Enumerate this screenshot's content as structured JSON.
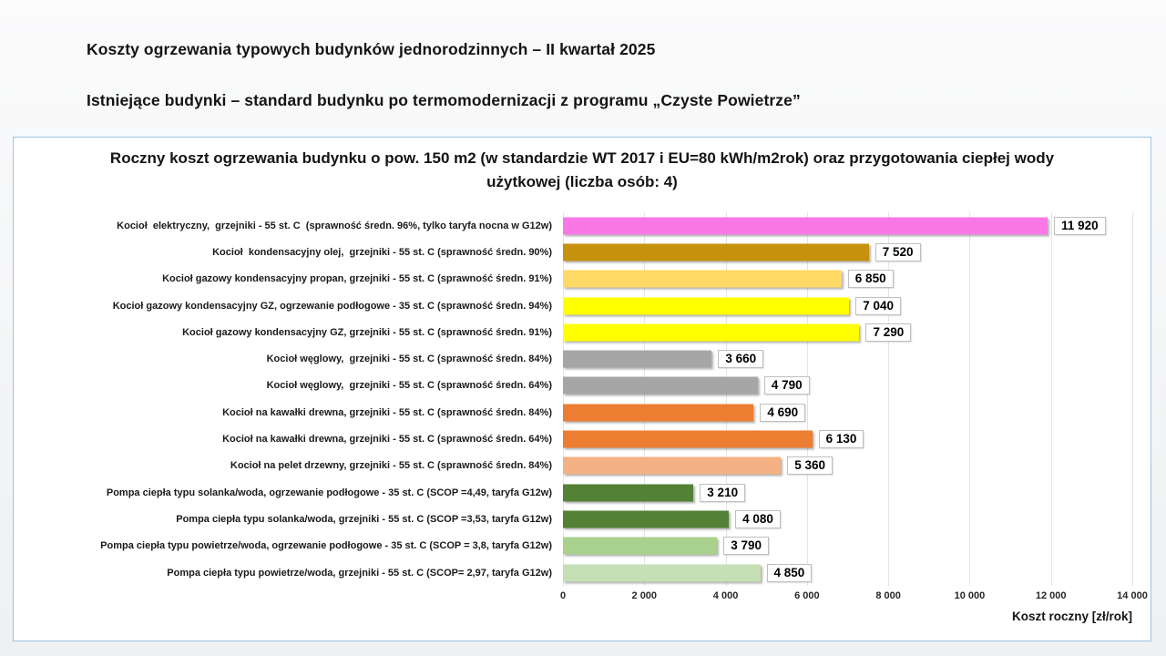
{
  "page": {
    "title_line1": "Koszty ogrzewania typowych budynków jednorodzinnych – II kwartał 2025",
    "title_line2": "Istniejące budynki – standard budynku po termomodernizacji z programu „Czyste Powietrze”"
  },
  "chart_data": {
    "type": "bar",
    "orientation": "horizontal",
    "title": "Roczny koszt ogrzewania budynku o pow. 150 m2 (w standardzie WT 2017 i EU=80 kWh/m2rok) oraz przygotowania ciepłej wody użytkowej (liczba osób: 4)",
    "xlabel": "Koszt roczny [zł/rok]",
    "xlim": [
      0,
      14000
    ],
    "xticks": [
      0,
      2000,
      4000,
      6000,
      8000,
      10000,
      12000,
      14000
    ],
    "xtick_labels": [
      "0",
      "2 000",
      "4 000",
      "6 000",
      "8 000",
      "10 000",
      "12 000",
      "14 000"
    ],
    "grid": true,
    "legend": false,
    "categories": [
      "Kocioł  elektryczny,  grzejniki - 55 st. C  (sprawność średn. 96%, tylko taryfa nocna w G12w)",
      "Kocioł  kondensacyjny olej,  grzejniki - 55 st. C (sprawność średn. 90%)",
      "Kocioł gazowy kondensacyjny propan, grzejniki - 55 st. C (sprawność średn. 91%)",
      "Kocioł gazowy kondensacyjny GZ, ogrzewanie podłogowe - 35 st. C (sprawność średn. 94%)",
      "Kocioł gazowy kondensacyjny GZ, grzejniki - 55 st. C (sprawność średn. 91%)",
      "Kocioł węglowy,  grzejniki - 55 st. C (sprawność średn. 84%)",
      "Kocioł węglowy,  grzejniki - 55 st. C (sprawność średn. 64%)",
      "Kocioł na kawałki drewna, grzejniki - 55 st. C (sprawność średn. 84%)",
      "Kocioł na kawałki drewna, grzejniki - 55 st. C (sprawność średn. 64%)",
      "Kocioł na pelet drzewny, grzejniki - 55 st. C (sprawność średn. 84%)",
      "Pompa ciepła typu solanka/woda, ogrzewanie podłogowe - 35 st. C (SCOP =4,49, taryfa G12w)",
      "Pompa ciepła typu solanka/woda, grzejniki - 55 st. C (SCOP =3,53, taryfa G12w)",
      "Pompa ciepła typu powietrze/woda, ogrzewanie podłogowe - 35 st. C (SCOP = 3,8, taryfa G12w)",
      "Pompa ciepła typu powietrze/woda, grzejniki - 55 st. C (SCOP= 2,97, taryfa G12w)"
    ],
    "values": [
      11920,
      7520,
      6850,
      7040,
      7290,
      3660,
      4790,
      4690,
      6130,
      5360,
      3210,
      4080,
      3790,
      4850
    ],
    "value_labels": [
      "11 920",
      "7 520",
      "6 850",
      "7 040",
      "7 290",
      "3 660",
      "4 790",
      "4 690",
      "6 130",
      "5 360",
      "3 210",
      "4 080",
      "3 790",
      "4 850"
    ],
    "bar_colors": [
      "#FA78E6",
      "#C6910C",
      "#FFD966",
      "#FFFF00",
      "#FFFF00",
      "#A6A6A6",
      "#A6A6A6",
      "#ED7D31",
      "#ED7D31",
      "#F4B183",
      "#538135",
      "#538135",
      "#A9D18E",
      "#C5E0B4"
    ]
  },
  "style": {
    "chart_border_color": "#9DC3E6",
    "gridline_color": "#e4e4e4",
    "value_box_border": "#bfbfbf"
  }
}
